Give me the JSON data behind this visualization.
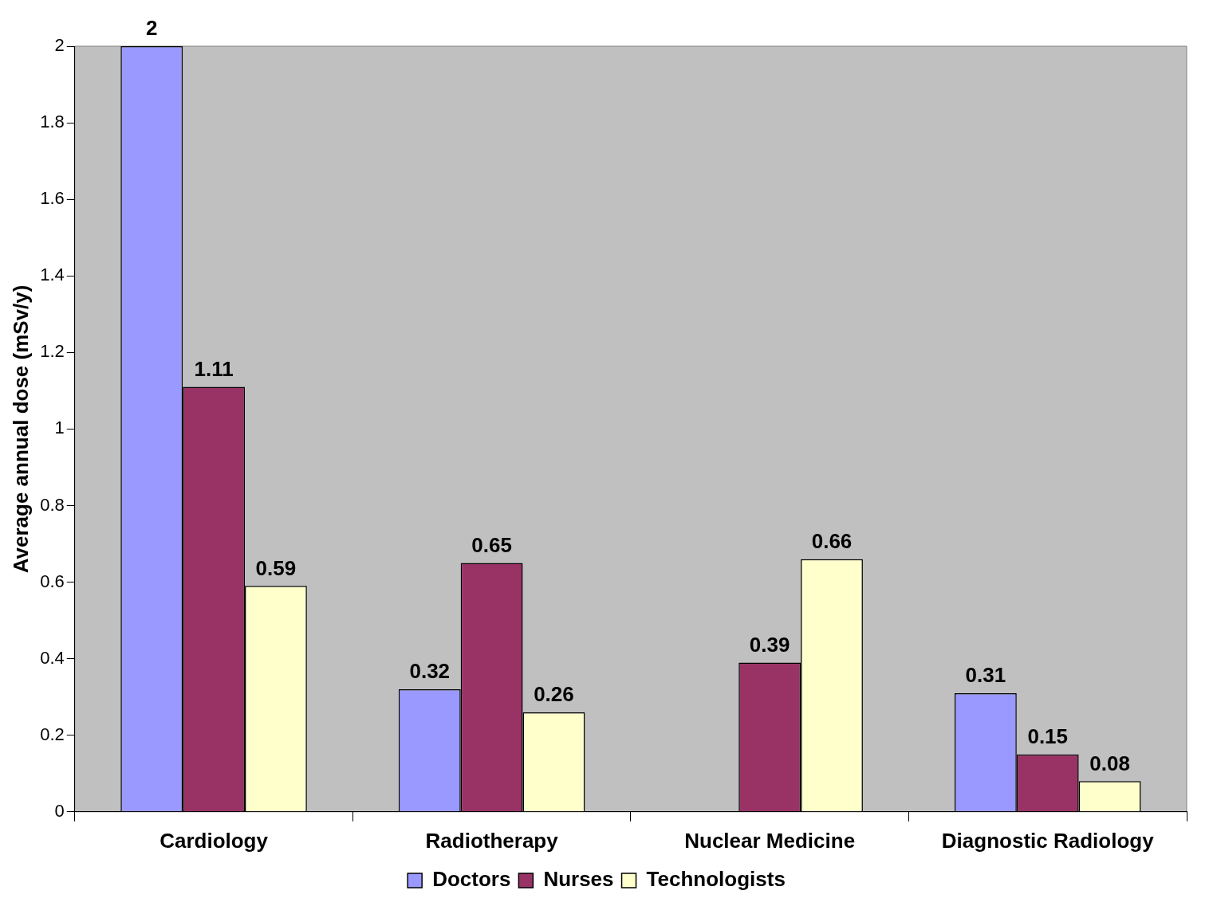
{
  "chart_data": {
    "type": "bar",
    "ylabel": "Average annual dose (mSv/y)",
    "categories": [
      "Cardiology",
      "Radiotherapy",
      "Nuclear Medicine",
      "Diagnostic Radiology"
    ],
    "series": [
      {
        "name": "Doctors",
        "color": "#9999ff",
        "values": [
          2,
          0.32,
          null,
          0.31
        ]
      },
      {
        "name": "Nurses",
        "color": "#993366",
        "values": [
          1.11,
          0.65,
          0.39,
          0.15
        ]
      },
      {
        "name": "Technologists",
        "color": "#ffffcc",
        "values": [
          0.59,
          0.26,
          0.66,
          0.08
        ]
      }
    ],
    "ylim": [
      0,
      2
    ],
    "yticks": [
      0,
      0.2,
      0.4,
      0.6,
      0.8,
      1,
      1.2,
      1.4,
      1.6,
      1.8,
      2
    ],
    "grid": false,
    "legend": "bottom",
    "data_labels": true
  }
}
